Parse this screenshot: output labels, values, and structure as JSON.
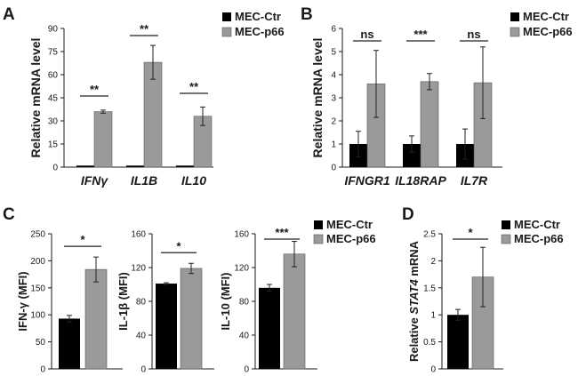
{
  "colors": {
    "ctr": "#000000",
    "p66": "#9a9a9a",
    "axis": "#1a1a1a"
  },
  "chart_data": [
    {
      "panel": "A",
      "type": "bar",
      "ylabel": "Relative mRNA level",
      "ylim": [
        0,
        90
      ],
      "yticks": [
        0,
        15,
        30,
        45,
        60,
        75,
        90
      ],
      "categories": [
        "IFNγ",
        "IL1B",
        "IL10"
      ],
      "series": [
        {
          "name": "MEC-Ctr",
          "values": [
            1,
            1,
            1
          ],
          "errors": [
            0,
            0,
            0
          ]
        },
        {
          "name": "MEC-p66",
          "values": [
            36,
            68,
            33
          ],
          "errors": [
            1,
            11,
            6
          ]
        }
      ],
      "significance": [
        "**",
        "**",
        "**"
      ]
    },
    {
      "panel": "B",
      "type": "bar",
      "ylabel": "Relative mRNA level",
      "ylim": [
        0,
        6
      ],
      "yticks": [
        0,
        1,
        2,
        3,
        4,
        5,
        6
      ],
      "categories": [
        "IFNGR1",
        "IL18RAP",
        "IL7R"
      ],
      "series": [
        {
          "name": "MEC-Ctr",
          "values": [
            1,
            1,
            1
          ],
          "errors": [
            0.55,
            0.35,
            0.65
          ]
        },
        {
          "name": "MEC-p66",
          "values": [
            3.6,
            3.7,
            3.65
          ],
          "errors": [
            1.45,
            0.35,
            1.55
          ]
        }
      ],
      "significance": [
        "ns",
        "***",
        "ns"
      ]
    },
    {
      "panel": "C1",
      "type": "bar",
      "ylabel": "IFN-γ (MFI)",
      "ylim": [
        0,
        250
      ],
      "yticks": [
        0,
        50,
        100,
        150,
        200,
        250
      ],
      "series": [
        {
          "name": "MEC-Ctr",
          "values": [
            93
          ],
          "errors": [
            6
          ]
        },
        {
          "name": "MEC-p66",
          "values": [
            184
          ],
          "errors": [
            23
          ]
        }
      ],
      "significance": [
        "*"
      ]
    },
    {
      "panel": "C2",
      "type": "bar",
      "ylabel": "IL-1β (MFI)",
      "ylim": [
        0,
        160
      ],
      "yticks": [
        0,
        40,
        80,
        120,
        160
      ],
      "series": [
        {
          "name": "MEC-Ctr",
          "values": [
            101
          ],
          "errors": [
            1
          ]
        },
        {
          "name": "MEC-p66",
          "values": [
            119
          ],
          "errors": [
            6
          ]
        }
      ],
      "significance": [
        "*"
      ]
    },
    {
      "panel": "C3",
      "type": "bar",
      "ylabel": "IL-10 (MFI)",
      "ylim": [
        0,
        160
      ],
      "yticks": [
        0,
        40,
        80,
        120,
        160
      ],
      "series": [
        {
          "name": "MEC-Ctr",
          "values": [
            96
          ],
          "errors": [
            4
          ]
        },
        {
          "name": "MEC-p66",
          "values": [
            136
          ],
          "errors": [
            15
          ]
        }
      ],
      "significance": [
        "***"
      ]
    },
    {
      "panel": "D",
      "type": "bar",
      "ylabel": "Relative STAT4 mRNA",
      "ylabel_parts": [
        "Relative ",
        "STAT4",
        " mRNA"
      ],
      "ylim": [
        0,
        2.5
      ],
      "yticks": [
        0,
        0.5,
        1,
        1.5,
        2,
        2.5
      ],
      "series": [
        {
          "name": "MEC-Ctr",
          "values": [
            1
          ],
          "errors": [
            0.1
          ]
        },
        {
          "name": "MEC-p66",
          "values": [
            1.7
          ],
          "errors": [
            0.55
          ]
        }
      ],
      "significance": [
        "*"
      ]
    }
  ],
  "panel_labels": [
    "A",
    "B",
    "C",
    "D"
  ],
  "legend": [
    "MEC-Ctr",
    "MEC-p66"
  ]
}
